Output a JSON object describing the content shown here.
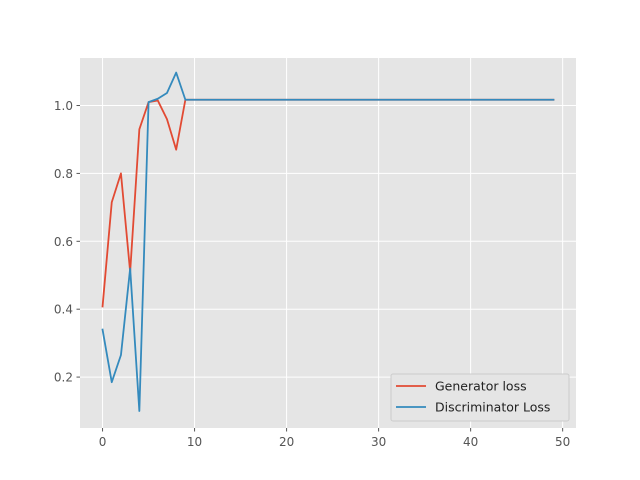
{
  "chart_data": {
    "type": "line",
    "title": "",
    "xlabel": "",
    "ylabel": "",
    "xlim": [
      -2.45,
      51.45
    ],
    "ylim": [
      0.05,
      1.14
    ],
    "xticks": [
      0,
      10,
      20,
      30,
      40,
      50
    ],
    "yticks": [
      0.2,
      0.4,
      0.6,
      0.8,
      1.0
    ],
    "ytick_format": 1,
    "grid": true,
    "legend": "bottom-right",
    "series": [
      {
        "name": "Generator loss",
        "color": "#E24A33",
        "x": [
          0,
          1,
          2,
          3,
          4,
          5,
          6,
          7,
          8,
          9,
          10,
          11,
          12,
          13,
          14,
          15,
          16,
          17,
          18,
          19,
          20,
          21,
          22,
          23,
          24,
          25,
          26,
          27,
          28,
          29,
          30,
          31,
          32,
          33,
          34,
          35,
          36,
          37,
          38,
          39,
          40,
          41,
          42,
          43,
          44,
          45,
          46,
          47,
          48,
          49
        ],
        "y": [
          0.408,
          0.715,
          0.8,
          0.51,
          0.93,
          1.01,
          1.015,
          0.96,
          0.87,
          1.017,
          1.017,
          1.017,
          1.017,
          1.017,
          1.017,
          1.017,
          1.017,
          1.017,
          1.017,
          1.017,
          1.017,
          1.017,
          1.017,
          1.017,
          1.017,
          1.017,
          1.017,
          1.017,
          1.017,
          1.017,
          1.017,
          1.017,
          1.017,
          1.017,
          1.017,
          1.017,
          1.017,
          1.017,
          1.017,
          1.017,
          1.017,
          1.017,
          1.017,
          1.017,
          1.017,
          1.017,
          1.017,
          1.017,
          1.017,
          1.017
        ]
      },
      {
        "name": "Discriminator Loss",
        "color": "#348ABD",
        "x": [
          0,
          1,
          2,
          3,
          4,
          5,
          6,
          7,
          8,
          9,
          10,
          11,
          12,
          13,
          14,
          15,
          16,
          17,
          18,
          19,
          20,
          21,
          22,
          23,
          24,
          25,
          26,
          27,
          28,
          29,
          30,
          31,
          32,
          33,
          34,
          35,
          36,
          37,
          38,
          39,
          40,
          41,
          42,
          43,
          44,
          45,
          46,
          47,
          48,
          49
        ],
        "y": [
          0.34,
          0.185,
          0.265,
          0.52,
          0.1,
          1.01,
          1.02,
          1.037,
          1.097,
          1.017,
          1.017,
          1.017,
          1.017,
          1.017,
          1.017,
          1.017,
          1.017,
          1.017,
          1.017,
          1.017,
          1.017,
          1.017,
          1.017,
          1.017,
          1.017,
          1.017,
          1.017,
          1.017,
          1.017,
          1.017,
          1.017,
          1.017,
          1.017,
          1.017,
          1.017,
          1.017,
          1.017,
          1.017,
          1.017,
          1.017,
          1.017,
          1.017,
          1.017,
          1.017,
          1.017,
          1.017,
          1.017,
          1.017,
          1.017,
          1.017
        ]
      }
    ]
  }
}
